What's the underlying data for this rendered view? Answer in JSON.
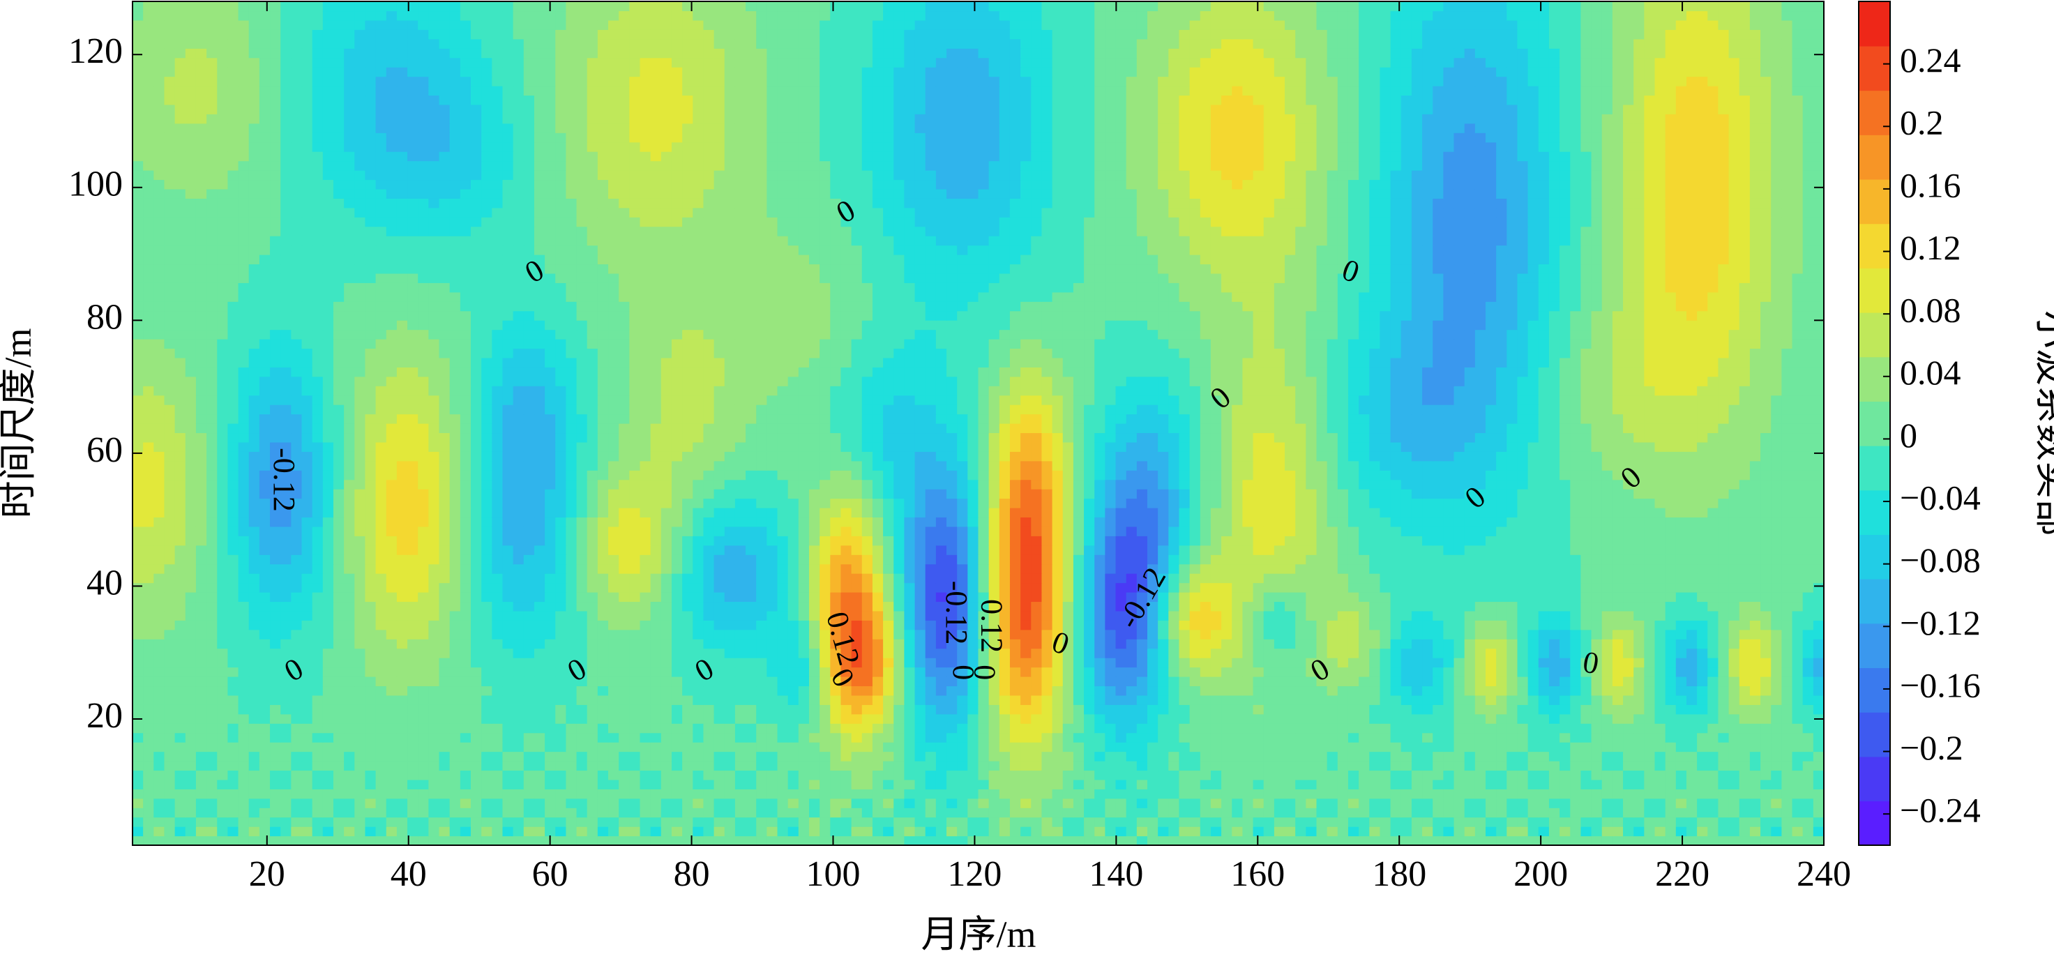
{
  "chart_data": {
    "type": "heatmap",
    "title": "",
    "xlabel": "月序/m",
    "ylabel": "时间尺度/m",
    "xlim": [
      1,
      240
    ],
    "ylim": [
      1,
      128
    ],
    "x_ticks": [
      20,
      40,
      60,
      80,
      100,
      120,
      140,
      160,
      180,
      200,
      220,
      240
    ],
    "y_ticks": [
      20,
      40,
      60,
      80,
      100,
      120
    ],
    "colorbar": {
      "label": "小波系数实部",
      "ticks": [
        -0.24,
        -0.2,
        -0.16,
        -0.12,
        -0.08,
        -0.04,
        0,
        0.04,
        0.08,
        0.12,
        0.16,
        0.2,
        0.24
      ],
      "tick_labels": [
        "−0.24",
        "−0.2",
        "−0.16",
        "−0.12",
        "−0.08",
        "−0.04",
        "0",
        "0.04",
        "0.08",
        "0.12",
        "0.16",
        "0.2",
        "0.24"
      ],
      "range": [
        -0.26,
        0.28
      ],
      "colormap": "parula-jet",
      "colors": [
        "#5a1eff",
        "#4a3af5",
        "#3e5af0",
        "#3a7aee",
        "#3a98ee",
        "#30b4ec",
        "#22cde6",
        "#1fe0dc",
        "#3ee6c2",
        "#6fe79e",
        "#98e67e",
        "#bfe85a",
        "#e2e83a",
        "#f4d830",
        "#f7b62a",
        "#f79526",
        "#f57222",
        "#f24b1e",
        "#ee2718"
      ]
    },
    "contour_labels": [
      {
        "text": "-0.12",
        "x": 22,
        "y": 56,
        "rotate": 90
      },
      {
        "text": "0",
        "x": 24,
        "y": 27,
        "rotate": -30
      },
      {
        "text": "0",
        "x": 58,
        "y": 87,
        "rotate": -30
      },
      {
        "text": "0",
        "x": 64,
        "y": 27,
        "rotate": -30
      },
      {
        "text": "0",
        "x": 82,
        "y": 27,
        "rotate": -30
      },
      {
        "text": "0",
        "x": 102,
        "y": 96,
        "rotate": -30
      },
      {
        "text": "0.12",
        "x": 101,
        "y": 32,
        "rotate": 75
      },
      {
        "text": "0",
        "x": 101,
        "y": 26,
        "rotate": 60
      },
      {
        "text": "-0.12",
        "x": 117,
        "y": 36,
        "rotate": 90
      },
      {
        "text": "0",
        "x": 118,
        "y": 27,
        "rotate": 90
      },
      {
        "text": "0.12",
        "x": 122,
        "y": 34,
        "rotate": 90
      },
      {
        "text": "0",
        "x": 121,
        "y": 27,
        "rotate": 90
      },
      {
        "text": "0",
        "x": 132,
        "y": 31,
        "rotate": 20
      },
      {
        "text": "-0.12",
        "x": 144,
        "y": 38,
        "rotate": -60
      },
      {
        "text": "0",
        "x": 155,
        "y": 68,
        "rotate": -40
      },
      {
        "text": "0",
        "x": 169,
        "y": 27,
        "rotate": -30
      },
      {
        "text": "0",
        "x": 173,
        "y": 87,
        "rotate": 20
      },
      {
        "text": "0",
        "x": 191,
        "y": 53,
        "rotate": -40
      },
      {
        "text": "0",
        "x": 207,
        "y": 28,
        "rotate": 10
      },
      {
        "text": "0",
        "x": 213,
        "y": 56,
        "rotate": -40
      }
    ],
    "features": [
      {
        "x": 22,
        "y": 55,
        "sx": 5,
        "sy": 14,
        "a": -0.135
      },
      {
        "x": 40,
        "y": 52,
        "sx": 6,
        "sy": 16,
        "a": 0.125
      },
      {
        "x": 56,
        "y": 50,
        "sx": 6,
        "sy": 14,
        "a": -0.1
      },
      {
        "x": 57,
        "y": 68,
        "sx": 5,
        "sy": 10,
        "a": -0.06
      },
      {
        "x": 71,
        "y": 46,
        "sx": 5,
        "sy": 8,
        "a": 0.1
      },
      {
        "x": 79,
        "y": 67,
        "sx": 6,
        "sy": 12,
        "a": 0.06
      },
      {
        "x": 86,
        "y": 42,
        "sx": 6,
        "sy": 8,
        "a": -0.11
      },
      {
        "x": 96,
        "y": 28,
        "sx": 3,
        "sy": 6,
        "a": -0.08
      },
      {
        "x": 102,
        "y": 38,
        "sx": 4,
        "sy": 13,
        "a": 0.18
      },
      {
        "x": 105,
        "y": 28,
        "sx": 4,
        "sy": 7,
        "a": 0.12
      },
      {
        "x": 107,
        "y": 63,
        "sx": 6,
        "sy": 10,
        "a": -0.07
      },
      {
        "x": 116,
        "y": 38,
        "sx": 4.5,
        "sy": 14,
        "a": -0.215
      },
      {
        "x": 127,
        "y": 37,
        "sx": 4.5,
        "sy": 15,
        "a": 0.225
      },
      {
        "x": 128,
        "y": 58,
        "sx": 4,
        "sy": 12,
        "a": 0.1
      },
      {
        "x": 141,
        "y": 36,
        "sx": 4.5,
        "sy": 12,
        "a": -0.19
      },
      {
        "x": 145,
        "y": 55,
        "sx": 5,
        "sy": 12,
        "a": -0.1
      },
      {
        "x": 151,
        "y": 35,
        "sx": 4,
        "sy": 6,
        "a": 0.13
      },
      {
        "x": 162,
        "y": 53,
        "sx": 6,
        "sy": 18,
        "a": 0.1
      },
      {
        "x": 163,
        "y": 35,
        "sx": 3,
        "sy": 5,
        "a": -0.08
      },
      {
        "x": 173,
        "y": 32,
        "sx": 3,
        "sy": 5,
        "a": 0.06
      },
      {
        "x": 183,
        "y": 28,
        "sx": 3,
        "sy": 5,
        "a": -0.08
      },
      {
        "x": 193,
        "y": 28,
        "sx": 2.5,
        "sy": 5,
        "a": 0.1
      },
      {
        "x": 202,
        "y": 28,
        "sx": 2.5,
        "sy": 5,
        "a": -0.11
      },
      {
        "x": 211,
        "y": 28,
        "sx": 2.5,
        "sy": 5,
        "a": 0.1
      },
      {
        "x": 221,
        "y": 28,
        "sx": 2.5,
        "sy": 5,
        "a": -0.11
      },
      {
        "x": 230,
        "y": 28,
        "sx": 2.5,
        "sy": 5,
        "a": 0.11
      },
      {
        "x": 240,
        "y": 28,
        "sx": 2.5,
        "sy": 5,
        "a": -0.1
      },
      {
        "x": 3,
        "y": 55,
        "sx": 6,
        "sy": 14,
        "a": 0.09
      },
      {
        "x": 37,
        "y": 115,
        "sx": 9,
        "sy": 14,
        "a": -0.08
      },
      {
        "x": 47,
        "y": 105,
        "sx": 8,
        "sy": 10,
        "a": -0.05
      },
      {
        "x": 75,
        "y": 112,
        "sx": 10,
        "sy": 16,
        "a": 0.09
      },
      {
        "x": 118,
        "y": 110,
        "sx": 9,
        "sy": 18,
        "a": -0.11
      },
      {
        "x": 157,
        "y": 108,
        "sx": 9,
        "sy": 16,
        "a": 0.12
      },
      {
        "x": 190,
        "y": 95,
        "sx": 9,
        "sy": 28,
        "a": -0.135
      },
      {
        "x": 222,
        "y": 100,
        "sx": 8,
        "sy": 26,
        "a": 0.135
      },
      {
        "x": 10,
        "y": 115,
        "sx": 8,
        "sy": 12,
        "a": 0.06
      },
      {
        "x": 95,
        "y": 80,
        "sx": 8,
        "sy": 10,
        "a": 0.04
      },
      {
        "x": 180,
        "y": 65,
        "sx": 8,
        "sy": 10,
        "a": -0.06
      },
      {
        "x": 210,
        "y": 70,
        "sx": 8,
        "sy": 10,
        "a": 0.04
      }
    ]
  }
}
